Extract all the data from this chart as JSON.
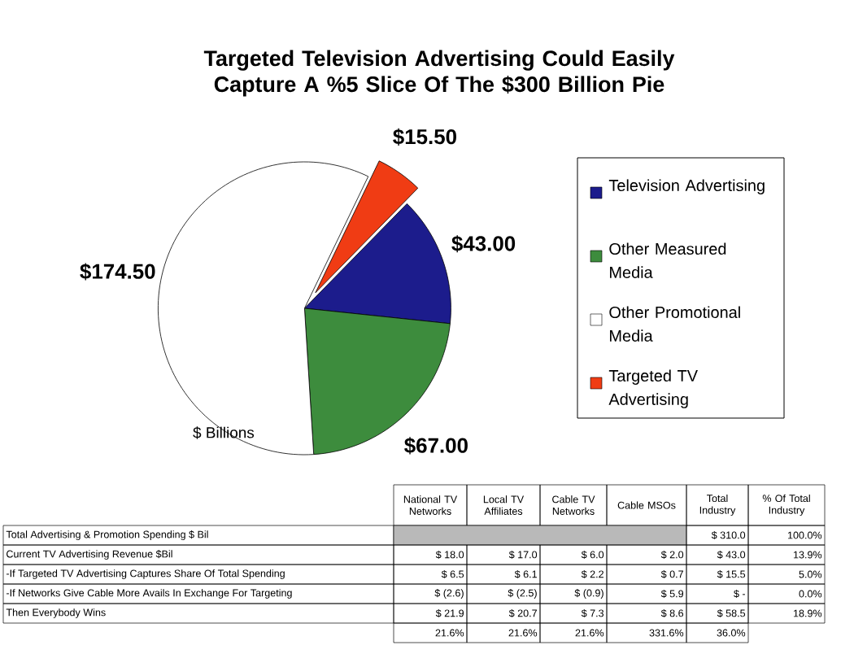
{
  "chart_data": {
    "type": "pie",
    "title": "Targeted Television Advertising Could Easily Capture A %5 Slice Of The $300 Billion Pie",
    "categories": [
      "Television Advertising",
      "Other Measured Media",
      "Other Promotional Media",
      "Targeted TV Advertising"
    ],
    "values": [
      43,
      67,
      174.5,
      15.5
    ],
    "colors": [
      "#1c1c8c",
      "#3d8c3d",
      "#ffffff",
      "#f03c14"
    ],
    "value_labels": [
      "$43.00",
      "$67.00",
      "$174.50",
      "$15.50"
    ],
    "legend": "right",
    "annotations": [
      "$ Billions",
      "National TV Networks",
      "Local TV Affiliates",
      "Cable TV Networks",
      "Cable MSOs",
      "Total Industry",
      "% Of Total Industry",
      "Total Advertising & Promotion Spending $ Bil",
      "$ 310.0",
      "100.0%",
      "Current TV Advertising Revenue $Bil",
      "$ 18.0",
      "$ 17.0",
      "$ 6.0",
      "$ 2.0",
      "$ 43.0",
      "13.9%",
      "-If Targeted TV Advertising Captures Share Of Total Spending",
      "$ 6.5",
      "$ 6.1",
      "$ 2.2",
      "$ 0.7",
      "$ 15.5",
      "5.0%",
      "-If Networks Give Cable More Avails In Exchange For Targeting",
      "$ (2.6)",
      "$ (2.5)",
      "$ (0.9)",
      "$ 5.9",
      "$ -",
      "0.0%",
      "Then Everybody Wins",
      "$ 21.9",
      "$ 20.7",
      "$ 7.3",
      "$ 8.6",
      "$ 58.5",
      "18.9%",
      "21.6%",
      "21.6%",
      "21.6%",
      "331.6%",
      "36.0%"
    ]
  }
}
